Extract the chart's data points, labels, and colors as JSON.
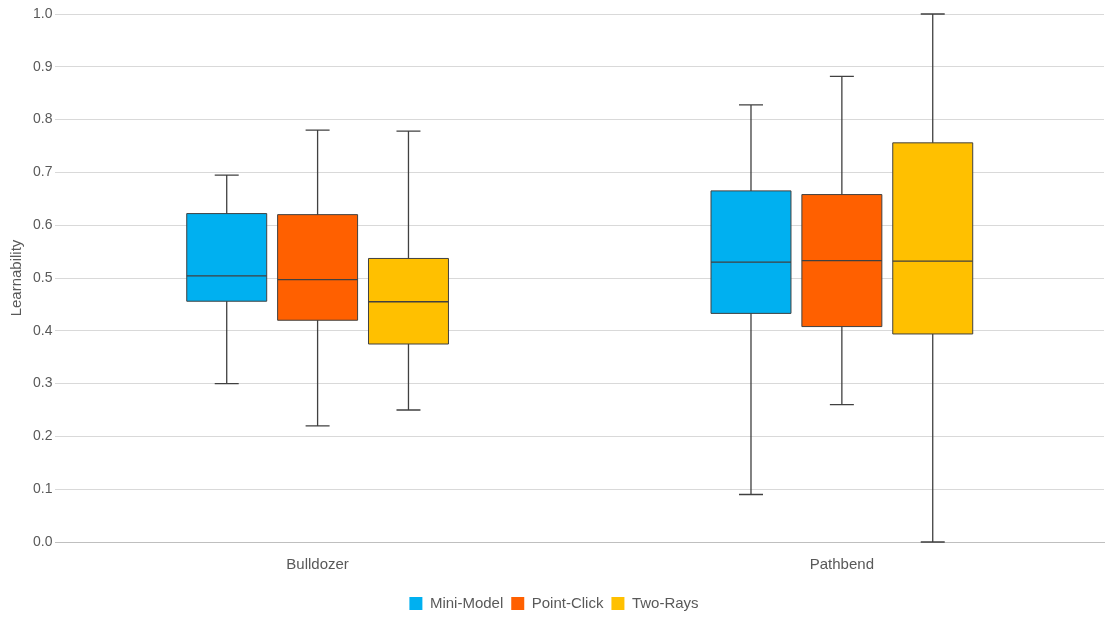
{
  "chart_data": {
    "type": "box",
    "ylabel": "Learnability",
    "categories": [
      "Bulldozer",
      "Pathbend"
    ],
    "ylim": [
      0,
      1
    ],
    "yticks": [
      {
        "value": 0,
        "label": "0.0"
      },
      {
        "value": 0.1,
        "label": "0.1"
      },
      {
        "value": 0.2,
        "label": "0.2"
      },
      {
        "value": 0.3,
        "label": "0.3"
      },
      {
        "value": 0.4,
        "label": "0.4"
      },
      {
        "value": 0.5,
        "label": "0.5"
      },
      {
        "value": 0.6,
        "label": "0.6"
      },
      {
        "value": 0.7,
        "label": "0.7"
      },
      {
        "value": 0.8,
        "label": "0.8"
      },
      {
        "value": 0.9,
        "label": "0.9"
      },
      {
        "value": 1,
        "label": "1.0"
      }
    ],
    "grid": "y",
    "legend": "bottom",
    "series": [
      {
        "name": "Mini-Model",
        "color": "#00b0f0",
        "boxes": [
          {
            "low": 0.3,
            "q1": 0.456,
            "median": 0.504,
            "q3": 0.622,
            "high": 0.695
          },
          {
            "low": 0.09,
            "q1": 0.433,
            "median": 0.53,
            "q3": 0.665,
            "high": 0.828
          }
        ]
      },
      {
        "name": "Point-Click",
        "color": "#ff6000",
        "boxes": [
          {
            "low": 0.22,
            "q1": 0.42,
            "median": 0.497,
            "q3": 0.62,
            "high": 0.78
          },
          {
            "low": 0.26,
            "q1": 0.408,
            "median": 0.533,
            "q3": 0.658,
            "high": 0.882
          }
        ]
      },
      {
        "name": "Two-Rays",
        "color": "#ffc000",
        "boxes": [
          {
            "low": 0.25,
            "q1": 0.375,
            "median": 0.455,
            "q3": 0.537,
            "high": 0.778
          },
          {
            "low": 0,
            "q1": 0.394,
            "median": 0.532,
            "q3": 0.756,
            "high": 1
          }
        ]
      }
    ]
  }
}
